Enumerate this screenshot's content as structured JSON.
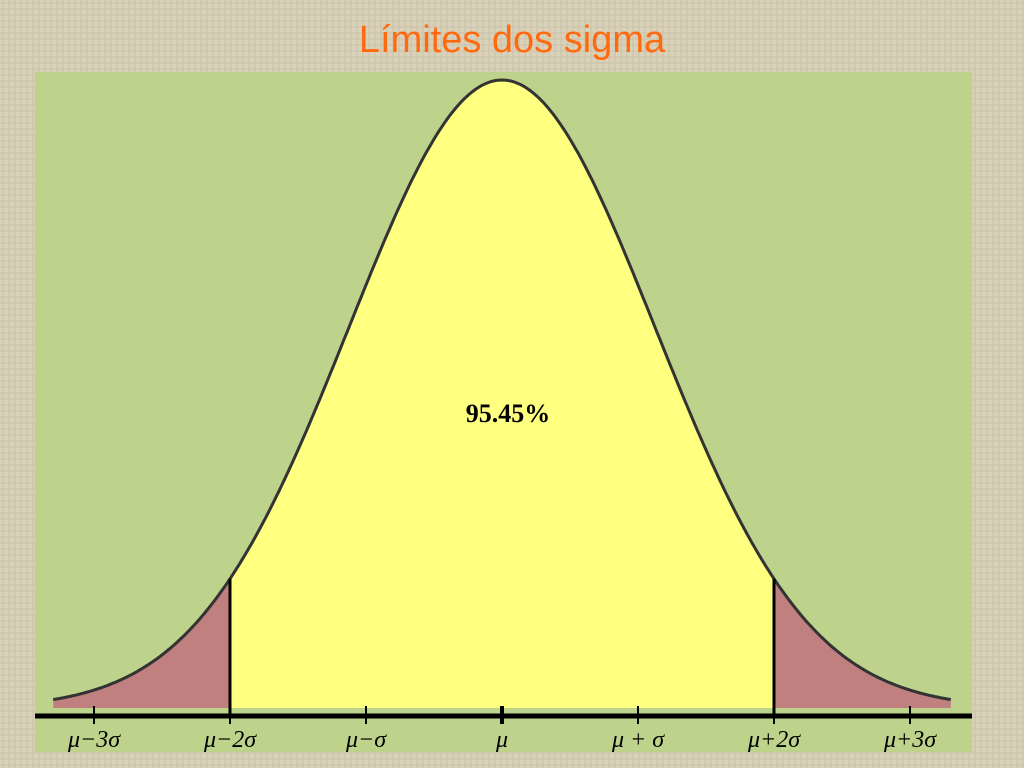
{
  "title": "Límites dos sigma",
  "annotation": "95.45%",
  "axis_labels": [
    "μ−3σ",
    "μ−2σ",
    "μ−σ",
    "μ",
    "μ + σ",
    "μ+2σ",
    "μ+3σ"
  ]
}
